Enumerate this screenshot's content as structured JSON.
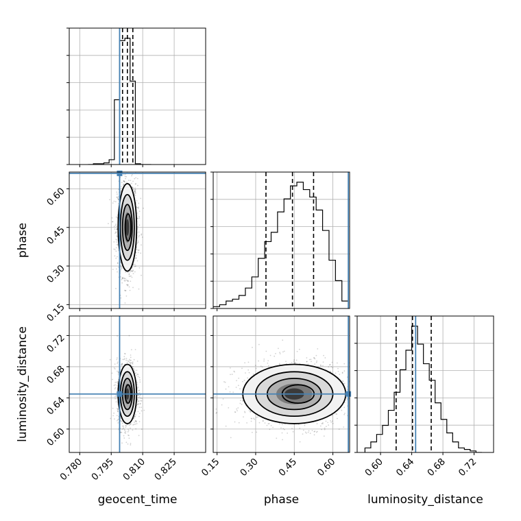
{
  "chart_data": {
    "type": "corner",
    "parameters": [
      "geocent_time",
      "phase",
      "luminosity_distance"
    ],
    "axis_labels": {
      "x": [
        "geocent_time",
        "phase",
        "luminosity_distance"
      ],
      "y": [
        "phase",
        "luminosity_distance"
      ]
    },
    "truths": {
      "geocent_time": 0.799,
      "phase": 0.66,
      "luminosity_distance": 0.645
    },
    "ranges": {
      "geocent_time": [
        0.775,
        0.84
      ],
      "phase": [
        0.135,
        0.665
      ],
      "luminosity_distance": [
        0.57,
        0.745
      ]
    },
    "ticks": {
      "geocent_time": [
        "0.780",
        "0.795",
        "0.810",
        "0.825"
      ],
      "phase": [
        "0.15",
        "0.30",
        "0.45",
        "0.60"
      ],
      "luminosity_distance": [
        "0.60",
        "0.64",
        "0.68",
        "0.72"
      ]
    },
    "quantiles": {
      "geocent_time": [
        0.8004,
        0.8027,
        0.8053
      ],
      "phase": [
        0.34,
        0.443,
        0.525
      ],
      "luminosity_distance": [
        0.62,
        0.641,
        0.665
      ]
    },
    "histograms": {
      "geocent_time": {
        "edges": [
          0.784,
          0.7865,
          0.789,
          0.7915,
          0.794,
          0.7965,
          0.799,
          0.8015,
          0.804,
          0.8065,
          0.809,
          0.8115,
          0.814
        ],
        "counts": [
          0,
          1,
          1,
          2,
          6,
          80,
          153,
          156,
          103,
          1,
          0,
          0
        ]
      },
      "phase": {
        "edges": [
          0.135,
          0.16,
          0.185,
          0.21,
          0.235,
          0.26,
          0.285,
          0.31,
          0.335,
          0.36,
          0.385,
          0.41,
          0.435,
          0.46,
          0.485,
          0.51,
          0.535,
          0.56,
          0.585,
          0.61,
          0.635,
          0.66
        ],
        "counts": [
          1,
          2,
          4,
          5,
          7,
          11,
          17,
          27,
          36,
          41,
          52,
          59,
          66,
          68,
          64,
          60,
          53,
          42,
          26,
          15,
          4
        ]
      },
      "luminosity_distance": {
        "edges": [
          0.58,
          0.5875,
          0.595,
          0.6025,
          0.61,
          0.6175,
          0.625,
          0.6325,
          0.64,
          0.6475,
          0.655,
          0.6625,
          0.67,
          0.6775,
          0.685,
          0.6925,
          0.7,
          0.7075,
          0.715,
          0.7225,
          0.73
        ],
        "counts": [
          3,
          7,
          12,
          18,
          28,
          40,
          55,
          68,
          84,
          72,
          59,
          48,
          33,
          22,
          13,
          7,
          3,
          2,
          1,
          0
        ]
      }
    },
    "contours_2d": [
      {
        "x": "geocent_time",
        "y": "phase",
        "center": [
          0.8027,
          0.45
        ],
        "sigma": [
          0.0022,
          0.085
        ]
      },
      {
        "x": "geocent_time",
        "y": "luminosity_distance",
        "center": [
          0.8027,
          0.645
        ],
        "sigma": [
          0.0022,
          0.019
        ]
      },
      {
        "x": "phase",
        "y": "luminosity_distance",
        "center": [
          0.45,
          0.645
        ],
        "sigma": [
          0.1,
          0.019
        ]
      }
    ],
    "grid": true
  }
}
